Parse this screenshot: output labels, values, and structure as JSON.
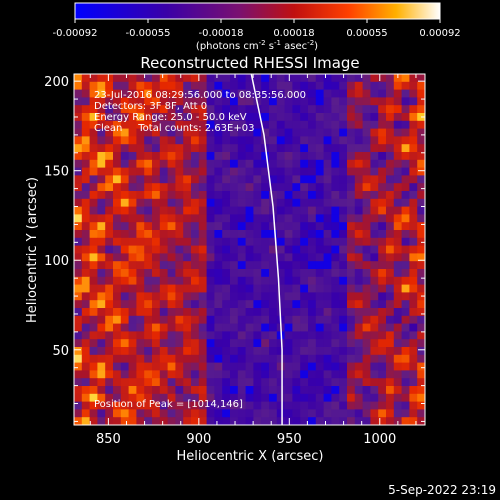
{
  "chart_data": {
    "type": "heatmap",
    "title": "Reconstructed RHESSI Image",
    "xlabel": "Heliocentric X (arcsec)",
    "ylabel": "Heliocentric Y (arcsec)",
    "xlim": [
      831,
      1025
    ],
    "ylim": [
      8,
      204
    ],
    "xticks": [
      850,
      900,
      950,
      1000
    ],
    "yticks": [
      50,
      100,
      150,
      200
    ],
    "colorbar": {
      "range": [
        -0.00092,
        0.00092
      ],
      "ticks": [
        "-0.00092",
        "-0.00055",
        "-0.00018",
        "0.00018",
        "0.00055",
        "0.00092"
      ],
      "label_main": "(photons cm",
      "label_sup1": "-2",
      "label_mid1": " s",
      "label_sup2": "-1",
      "label_mid2": " asec",
      "label_sup3": "-2",
      "label_end": ")"
    },
    "annotations": [
      "23-Jul-2016 08:29:56.000 to 08:35:56.000",
      "Detectors: 3F 8F, Att 0",
      "Energy Range: 25.0 - 50.0 keV",
      "Clean     Total counts: 2.63E+03"
    ],
    "peak_label": "Position of Peak = [1014,146]",
    "limb_curve": [
      [
        929,
        204
      ],
      [
        936,
        170
      ],
      [
        941,
        130
      ],
      [
        944,
        90
      ],
      [
        946,
        50
      ],
      [
        946,
        8
      ]
    ]
  },
  "footer": {
    "timestamp": "5-Sep-2022 23:19"
  }
}
